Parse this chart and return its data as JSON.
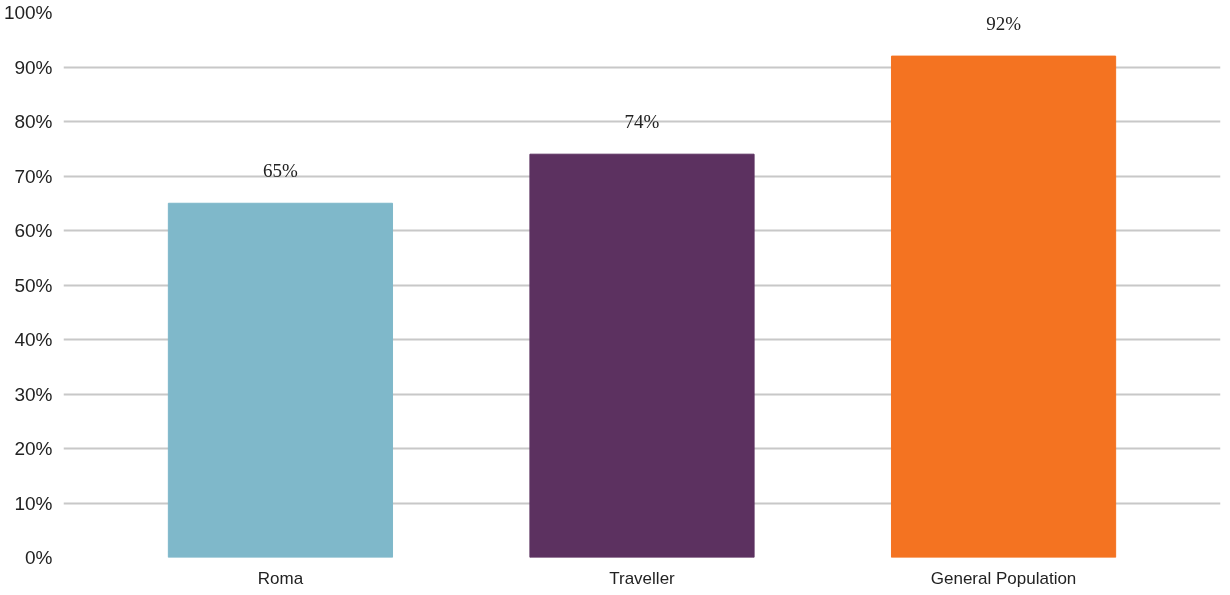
{
  "chart_data": {
    "type": "bar",
    "categories": [
      "Roma",
      "Traveller",
      "General Population"
    ],
    "values": [
      65,
      74,
      92
    ],
    "colors": [
      "#7fb8ca",
      "#5c3160",
      "#f47321"
    ],
    "value_labels": [
      "65%",
      "74%",
      "92%"
    ],
    "ylim": [
      0,
      100
    ],
    "yticks": [
      {
        "value": 0,
        "label": "0%"
      },
      {
        "value": 10,
        "label": "10%"
      },
      {
        "value": 20,
        "label": "20%"
      },
      {
        "value": 30,
        "label": "30%"
      },
      {
        "value": 40,
        "label": "40%"
      },
      {
        "value": 50,
        "label": "50%"
      },
      {
        "value": 60,
        "label": "60%"
      },
      {
        "value": 70,
        "label": "70%"
      },
      {
        "value": 80,
        "label": "80%"
      },
      {
        "value": 90,
        "label": "90%"
      },
      {
        "value": 100,
        "label": "100%"
      }
    ],
    "grid": "y"
  }
}
